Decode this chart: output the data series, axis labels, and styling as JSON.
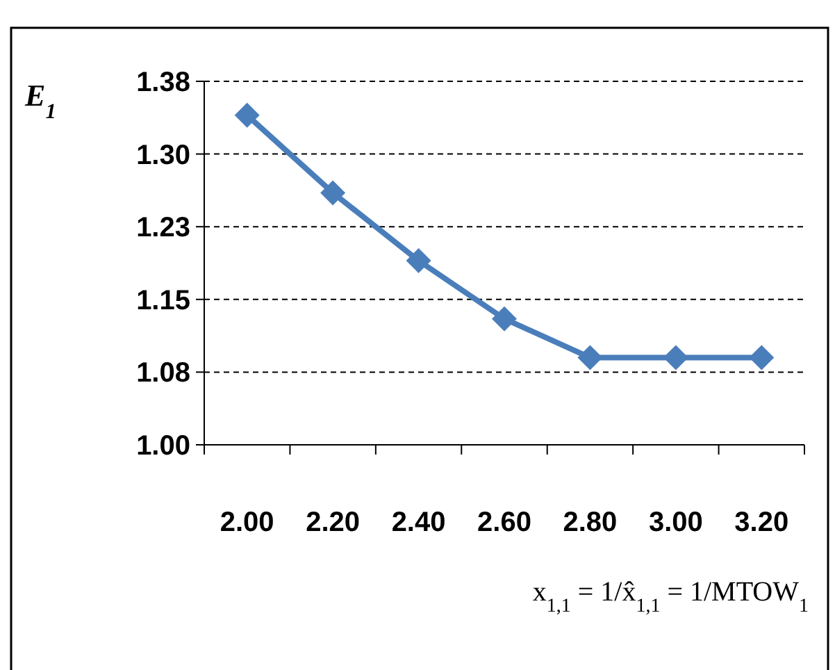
{
  "chart_data": {
    "type": "line",
    "xlabel": "x$_{1,1}$ = 1/x̂$_{1,1}$ = 1/MTOW$_{1}$",
    "ylabel": "E$_{1}$",
    "categories": [
      "2.00",
      "2.20",
      "2.40",
      "2.60",
      "2.80",
      "3.00",
      "3.20"
    ],
    "series": [
      {
        "color": "#4a7ebb",
        "values": [
          1.34,
          1.26,
          1.19,
          1.13,
          1.09,
          1.09,
          1.09
        ]
      }
    ],
    "ylim": [
      1.0,
      1.375
    ],
    "yticks": [
      {
        "value": 1.0,
        "label": "1.00"
      },
      {
        "value": 1.075,
        "label": "1.08"
      },
      {
        "value": 1.15,
        "label": "1.15"
      },
      {
        "value": 1.225,
        "label": "1.23"
      },
      {
        "value": 1.3,
        "label": "1.30"
      },
      {
        "value": 1.375,
        "label": "1.38"
      }
    ],
    "grid": "y",
    "marker": "diamond",
    "line_style": "solid"
  }
}
